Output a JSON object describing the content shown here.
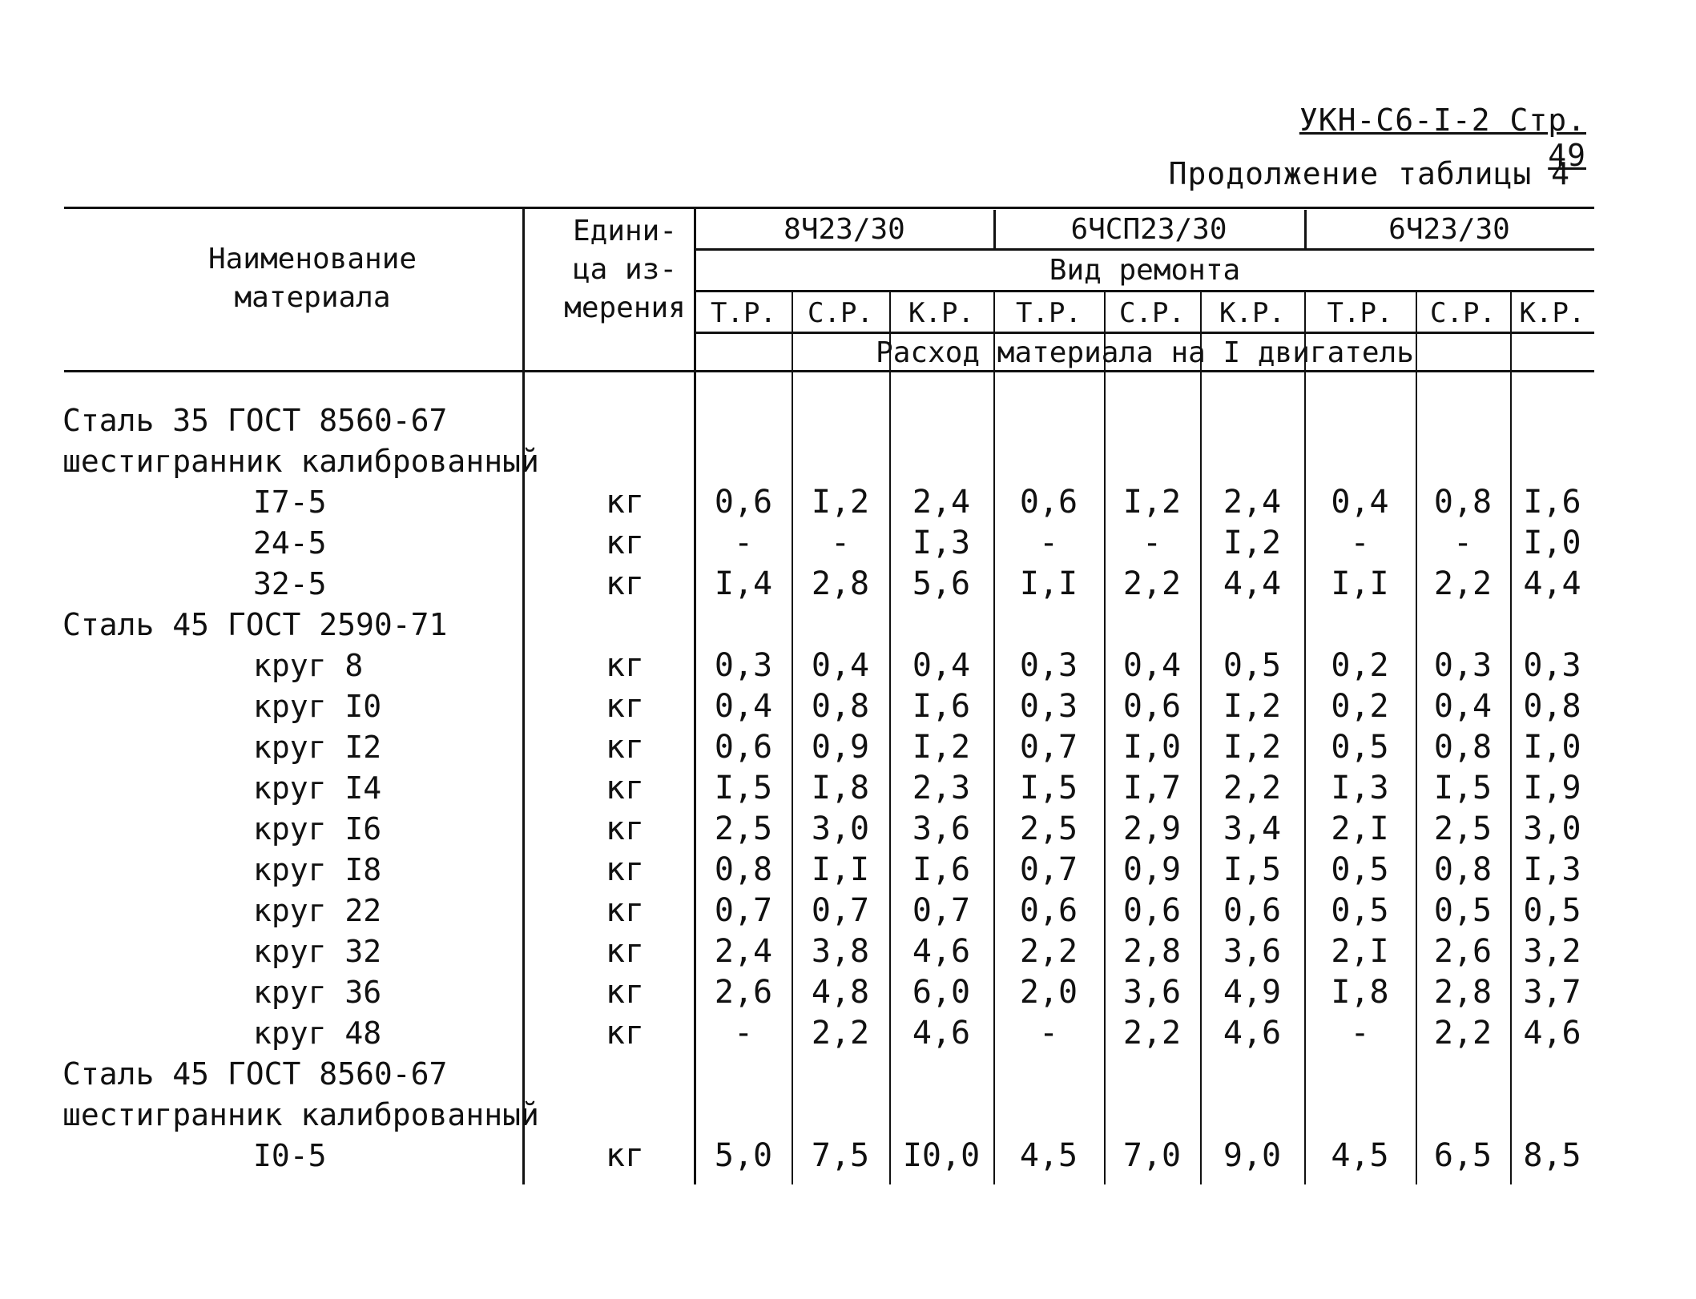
{
  "doc_ref": "УКН-С6-I-2 Стр. 49",
  "continuation": "Продолжение таблицы 4",
  "header": {
    "name_col": "Наименование материала",
    "unit_col": "Едини- ца из- мерения",
    "engines": [
      "8Ч23/30",
      "6ЧСП23/30",
      "6Ч23/30"
    ],
    "repair_type": "Вид ремонта",
    "repair_cols": [
      "Т.Р.",
      "С.Р.",
      "К.Р.",
      "Т.Р.",
      "С.Р.",
      "К.Р.",
      "Т.Р.",
      "С.Р.",
      "К.Р."
    ],
    "consumption": "Расход материала на I двигатель"
  },
  "rows": [
    {
      "name": "Сталь 35 ГОСТ 8560-67",
      "indent": false,
      "unit": "",
      "values": []
    },
    {
      "name": "шестигранник калиброванный",
      "indent": false,
      "unit": "",
      "values": []
    },
    {
      "name": "I7-5",
      "indent": true,
      "unit": "кг",
      "values": [
        "0,6",
        "I,2",
        "2,4",
        "0,6",
        "I,2",
        "2,4",
        "0,4",
        "0,8",
        "I,6"
      ]
    },
    {
      "name": "24-5",
      "indent": true,
      "unit": "кг",
      "values": [
        "-",
        "-",
        "I,3",
        "-",
        "-",
        "I,2",
        "-",
        "-",
        "I,0"
      ]
    },
    {
      "name": "32-5",
      "indent": true,
      "unit": "кг",
      "values": [
        "I,4",
        "2,8",
        "5,6",
        "I,I",
        "2,2",
        "4,4",
        "I,I",
        "2,2",
        "4,4"
      ]
    },
    {
      "name": "Сталь 45 ГОСТ 2590-71",
      "indent": false,
      "unit": "",
      "values": []
    },
    {
      "name": "круг 8",
      "indent": true,
      "unit": "кг",
      "values": [
        "0,3",
        "0,4",
        "0,4",
        "0,3",
        "0,4",
        "0,5",
        "0,2",
        "0,3",
        "0,3"
      ]
    },
    {
      "name": "круг I0",
      "indent": true,
      "unit": "кг",
      "values": [
        "0,4",
        "0,8",
        "I,6",
        "0,3",
        "0,6",
        "I,2",
        "0,2",
        "0,4",
        "0,8"
      ]
    },
    {
      "name": "круг I2",
      "indent": true,
      "unit": "кг",
      "values": [
        "0,6",
        "0,9",
        "I,2",
        "0,7",
        "I,0",
        "I,2",
        "0,5",
        "0,8",
        "I,0"
      ]
    },
    {
      "name": "круг I4",
      "indent": true,
      "unit": "кг",
      "values": [
        "I,5",
        "I,8",
        "2,3",
        "I,5",
        "I,7",
        "2,2",
        "I,3",
        "I,5",
        "I,9"
      ]
    },
    {
      "name": "круг I6",
      "indent": true,
      "unit": "кг",
      "values": [
        "2,5",
        "3,0",
        "3,6",
        "2,5",
        "2,9",
        "3,4",
        "2,I",
        "2,5",
        "3,0"
      ]
    },
    {
      "name": "круг I8",
      "indent": true,
      "unit": "кг",
      "values": [
        "0,8",
        "I,I",
        "I,6",
        "0,7",
        "0,9",
        "I,5",
        "0,5",
        "0,8",
        "I,3"
      ]
    },
    {
      "name": "круг 22",
      "indent": true,
      "unit": "кг",
      "values": [
        "0,7",
        "0,7",
        "0,7",
        "0,6",
        "0,6",
        "0,6",
        "0,5",
        "0,5",
        "0,5"
      ]
    },
    {
      "name": "круг 32",
      "indent": true,
      "unit": "кг",
      "values": [
        "2,4",
        "3,8",
        "4,6",
        "2,2",
        "2,8",
        "3,6",
        "2,I",
        "2,6",
        "3,2"
      ]
    },
    {
      "name": "круг 36",
      "indent": true,
      "unit": "кг",
      "values": [
        "2,6",
        "4,8",
        "6,0",
        "2,0",
        "3,6",
        "4,9",
        "I,8",
        "2,8",
        "3,7"
      ]
    },
    {
      "name": "круг 48",
      "indent": true,
      "unit": "кг",
      "values": [
        "-",
        "2,2",
        "4,6",
        "-",
        "2,2",
        "4,6",
        "-",
        "2,2",
        "4,6"
      ]
    },
    {
      "name": "Сталь 45 ГОСТ 8560-67",
      "indent": false,
      "unit": "",
      "values": []
    },
    {
      "name": "шестигранник калиброванный",
      "indent": false,
      "unit": "",
      "values": []
    },
    {
      "name": "I0-5",
      "indent": true,
      "unit": "кг",
      "values": [
        "5,0",
        "7,5",
        "I0,0",
        "4,5",
        "7,0",
        "9,0",
        "4,5",
        "6,5",
        "8,5"
      ]
    }
  ]
}
